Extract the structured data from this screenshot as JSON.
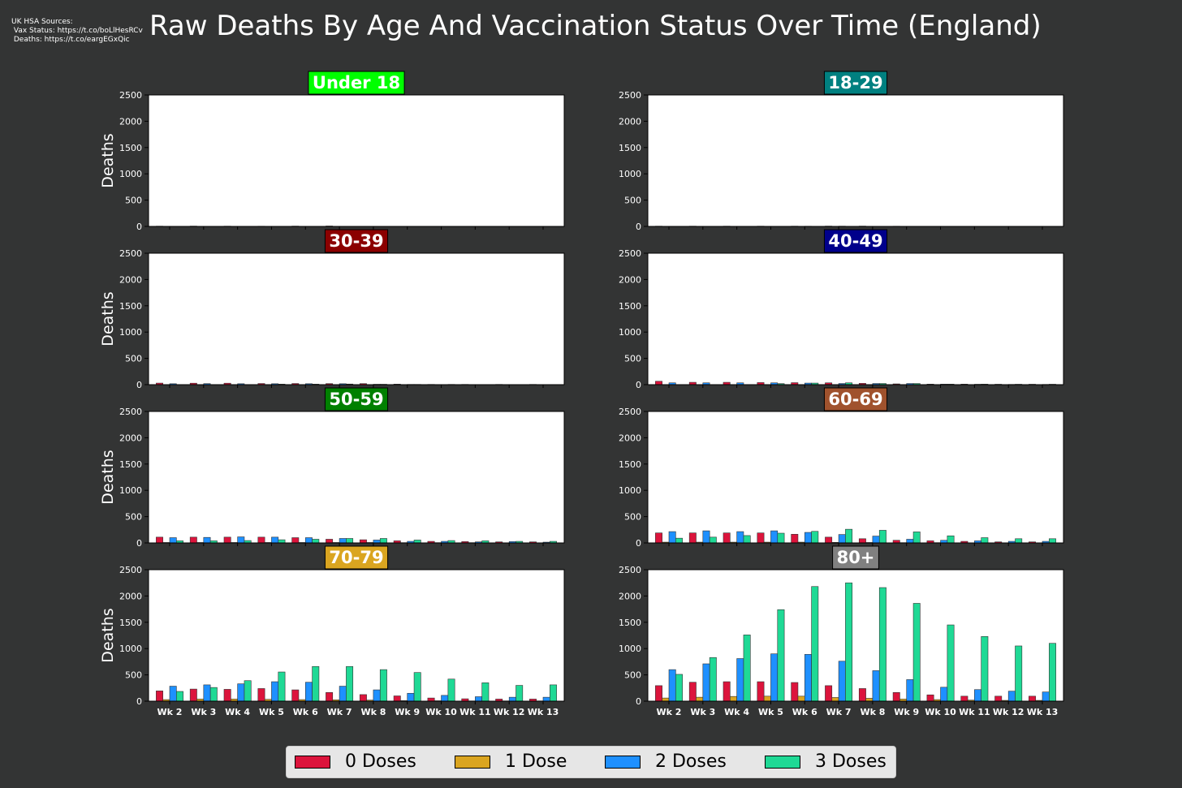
{
  "header": {
    "sources": "UK HSA Sources:\n Vax Status: https://t.co/boLlHesRCv\n Deaths: https://t.co/eargEGxQic",
    "title": "Raw Deaths By Age And Vaccination Status Over Time (England)"
  },
  "chart_data": {
    "type": "bar",
    "categories": [
      "Wk 2",
      "Wk 3",
      "Wk 4",
      "Wk 5",
      "Wk 6",
      "Wk 7",
      "Wk 8",
      "Wk 9",
      "Wk 10",
      "Wk 11",
      "Wk 12",
      "Wk 13"
    ],
    "ylabel": "Deaths",
    "ylim": [
      0,
      2500
    ],
    "yticks": [
      0,
      500,
      1000,
      1500,
      2000,
      2500
    ],
    "series_names": [
      "0 Doses",
      "1 Dose",
      "2 Doses",
      "3 Doses"
    ],
    "series_colors": [
      "#dc143c",
      "#daa520",
      "#1e90ff",
      "#1fd995"
    ],
    "legend_position": "bottom-center",
    "panels": [
      {
        "title": "Under 18",
        "color": "#00ff00",
        "text_color": "#ffffff",
        "series": [
          {
            "name": "0 Doses",
            "values": [
              5,
              6,
              5,
              4,
              6,
              8,
              0,
              0,
              0,
              0,
              0,
              0
            ]
          },
          {
            "name": "1 Dose",
            "values": [
              0,
              0,
              0,
              0,
              0,
              0,
              0,
              0,
              0,
              0,
              0,
              0
            ]
          },
          {
            "name": "2 Doses",
            "values": [
              0,
              0,
              0,
              0,
              0,
              0,
              0,
              0,
              0,
              0,
              0,
              0
            ]
          },
          {
            "name": "3 Doses",
            "values": [
              0,
              0,
              0,
              0,
              0,
              0,
              0,
              0,
              0,
              0,
              0,
              0
            ]
          }
        ]
      },
      {
        "title": "18-29",
        "color": "#008080",
        "text_color": "#ffffff",
        "series": [
          {
            "name": "0 Doses",
            "values": [
              5,
              5,
              5,
              5,
              5,
              6,
              6,
              4,
              0,
              0,
              0,
              0
            ]
          },
          {
            "name": "1 Dose",
            "values": [
              0,
              0,
              0,
              0,
              0,
              0,
              0,
              0,
              0,
              0,
              0,
              0
            ]
          },
          {
            "name": "2 Doses",
            "values": [
              3,
              3,
              3,
              3,
              4,
              5,
              3,
              0,
              0,
              0,
              0,
              0
            ]
          },
          {
            "name": "3 Doses",
            "values": [
              0,
              0,
              0,
              0,
              0,
              0,
              0,
              0,
              0,
              0,
              0,
              0
            ]
          }
        ]
      },
      {
        "title": "30-39",
        "color": "#8b0000",
        "text_color": "#ffffff",
        "series": [
          {
            "name": "0 Doses",
            "values": [
              30,
              28,
              28,
              22,
              22,
              20,
              20,
              10,
              5,
              5,
              5,
              5
            ]
          },
          {
            "name": "1 Dose",
            "values": [
              0,
              0,
              0,
              0,
              0,
              0,
              0,
              0,
              0,
              0,
              0,
              0
            ]
          },
          {
            "name": "2 Doses",
            "values": [
              18,
              20,
              18,
              18,
              18,
              18,
              8,
              5,
              3,
              3,
              3,
              3
            ]
          },
          {
            "name": "3 Doses",
            "values": [
              0,
              0,
              0,
              10,
              10,
              12,
              8,
              5,
              5,
              3,
              3,
              3
            ]
          }
        ]
      },
      {
        "title": "40-49",
        "color": "#00008b",
        "text_color": "#ffffff",
        "series": [
          {
            "name": "0 Doses",
            "values": [
              65,
              45,
              45,
              40,
              38,
              35,
              25,
              15,
              10,
              10,
              8,
              8
            ]
          },
          {
            "name": "1 Dose",
            "values": [
              0,
              0,
              0,
              0,
              0,
              0,
              0,
              0,
              0,
              0,
              0,
              0
            ]
          },
          {
            "name": "2 Doses",
            "values": [
              35,
              35,
              35,
              35,
              30,
              22,
              22,
              22,
              10,
              8,
              5,
              5
            ]
          },
          {
            "name": "3 Doses",
            "values": [
              0,
              0,
              0,
              20,
              30,
              35,
              22,
              22,
              10,
              10,
              8,
              8
            ]
          }
        ]
      },
      {
        "title": "50-59",
        "color": "#008000",
        "text_color": "#ffffff",
        "series": [
          {
            "name": "0 Doses",
            "values": [
              110,
              110,
              110,
              110,
              100,
              70,
              60,
              40,
              30,
              25,
              20,
              20
            ]
          },
          {
            "name": "1 Dose",
            "values": [
              8,
              8,
              8,
              8,
              8,
              8,
              8,
              5,
              5,
              5,
              3,
              3
            ]
          },
          {
            "name": "2 Doses",
            "values": [
              100,
              105,
              115,
              110,
              100,
              85,
              55,
              30,
              30,
              20,
              25,
              15
            ]
          },
          {
            "name": "3 Doses",
            "values": [
              40,
              40,
              45,
              60,
              70,
              85,
              85,
              55,
              45,
              40,
              30,
              30
            ]
          }
        ]
      },
      {
        "title": "60-69",
        "color": "#a0522d",
        "text_color": "#ffffff",
        "series": [
          {
            "name": "0 Doses",
            "values": [
              190,
              190,
              190,
              190,
              165,
              110,
              80,
              50,
              40,
              30,
              20,
              20
            ]
          },
          {
            "name": "1 Dose",
            "values": [
              15,
              15,
              15,
              15,
              15,
              10,
              8,
              5,
              5,
              3,
              3,
              3
            ]
          },
          {
            "name": "2 Doses",
            "values": [
              215,
              230,
              215,
              230,
              200,
              160,
              130,
              70,
              50,
              40,
              30,
              30
            ]
          },
          {
            "name": "3 Doses",
            "values": [
              90,
              110,
              140,
              185,
              220,
              260,
              240,
              210,
              135,
              100,
              80,
              80
            ]
          }
        ]
      },
      {
        "title": "70-79",
        "color": "#daa520",
        "text_color": "#ffffff",
        "series": [
          {
            "name": "0 Doses",
            "values": [
              195,
              230,
              225,
              240,
              215,
              165,
              125,
              100,
              60,
              45,
              40,
              40
            ]
          },
          {
            "name": "1 Dose",
            "values": [
              30,
              40,
              40,
              35,
              30,
              25,
              20,
              10,
              8,
              5,
              5,
              5
            ]
          },
          {
            "name": "2 Doses",
            "values": [
              285,
              310,
              330,
              370,
              360,
              285,
              215,
              150,
              110,
              85,
              75,
              75
            ]
          },
          {
            "name": "3 Doses",
            "values": [
              185,
              260,
              390,
              555,
              660,
              660,
              600,
              545,
              420,
              350,
              300,
              310
            ]
          }
        ]
      },
      {
        "title": "80+",
        "color": "#808080",
        "text_color": "#ffffff",
        "series": [
          {
            "name": "0 Doses",
            "values": [
              295,
              360,
              370,
              370,
              355,
              295,
              240,
              165,
              120,
              95,
              95,
              95
            ]
          },
          {
            "name": "1 Dose",
            "values": [
              60,
              75,
              90,
              95,
              95,
              70,
              55,
              40,
              30,
              20,
              15,
              15
            ]
          },
          {
            "name": "2 Doses",
            "values": [
              600,
              710,
              810,
              900,
              890,
              760,
              580,
              410,
              265,
              220,
              190,
              175
            ]
          },
          {
            "name": "3 Doses",
            "values": [
              510,
              830,
              1260,
              1740,
              2180,
              2250,
              2160,
              1860,
              1450,
              1230,
              1050,
              1100
            ]
          }
        ]
      }
    ]
  },
  "legend": {
    "items": [
      {
        "label": "0 Doses",
        "color": "#dc143c"
      },
      {
        "label": "1 Dose",
        "color": "#daa520"
      },
      {
        "label": "2 Doses",
        "color": "#1e90ff"
      },
      {
        "label": "3 Doses",
        "color": "#1fd995"
      }
    ]
  }
}
